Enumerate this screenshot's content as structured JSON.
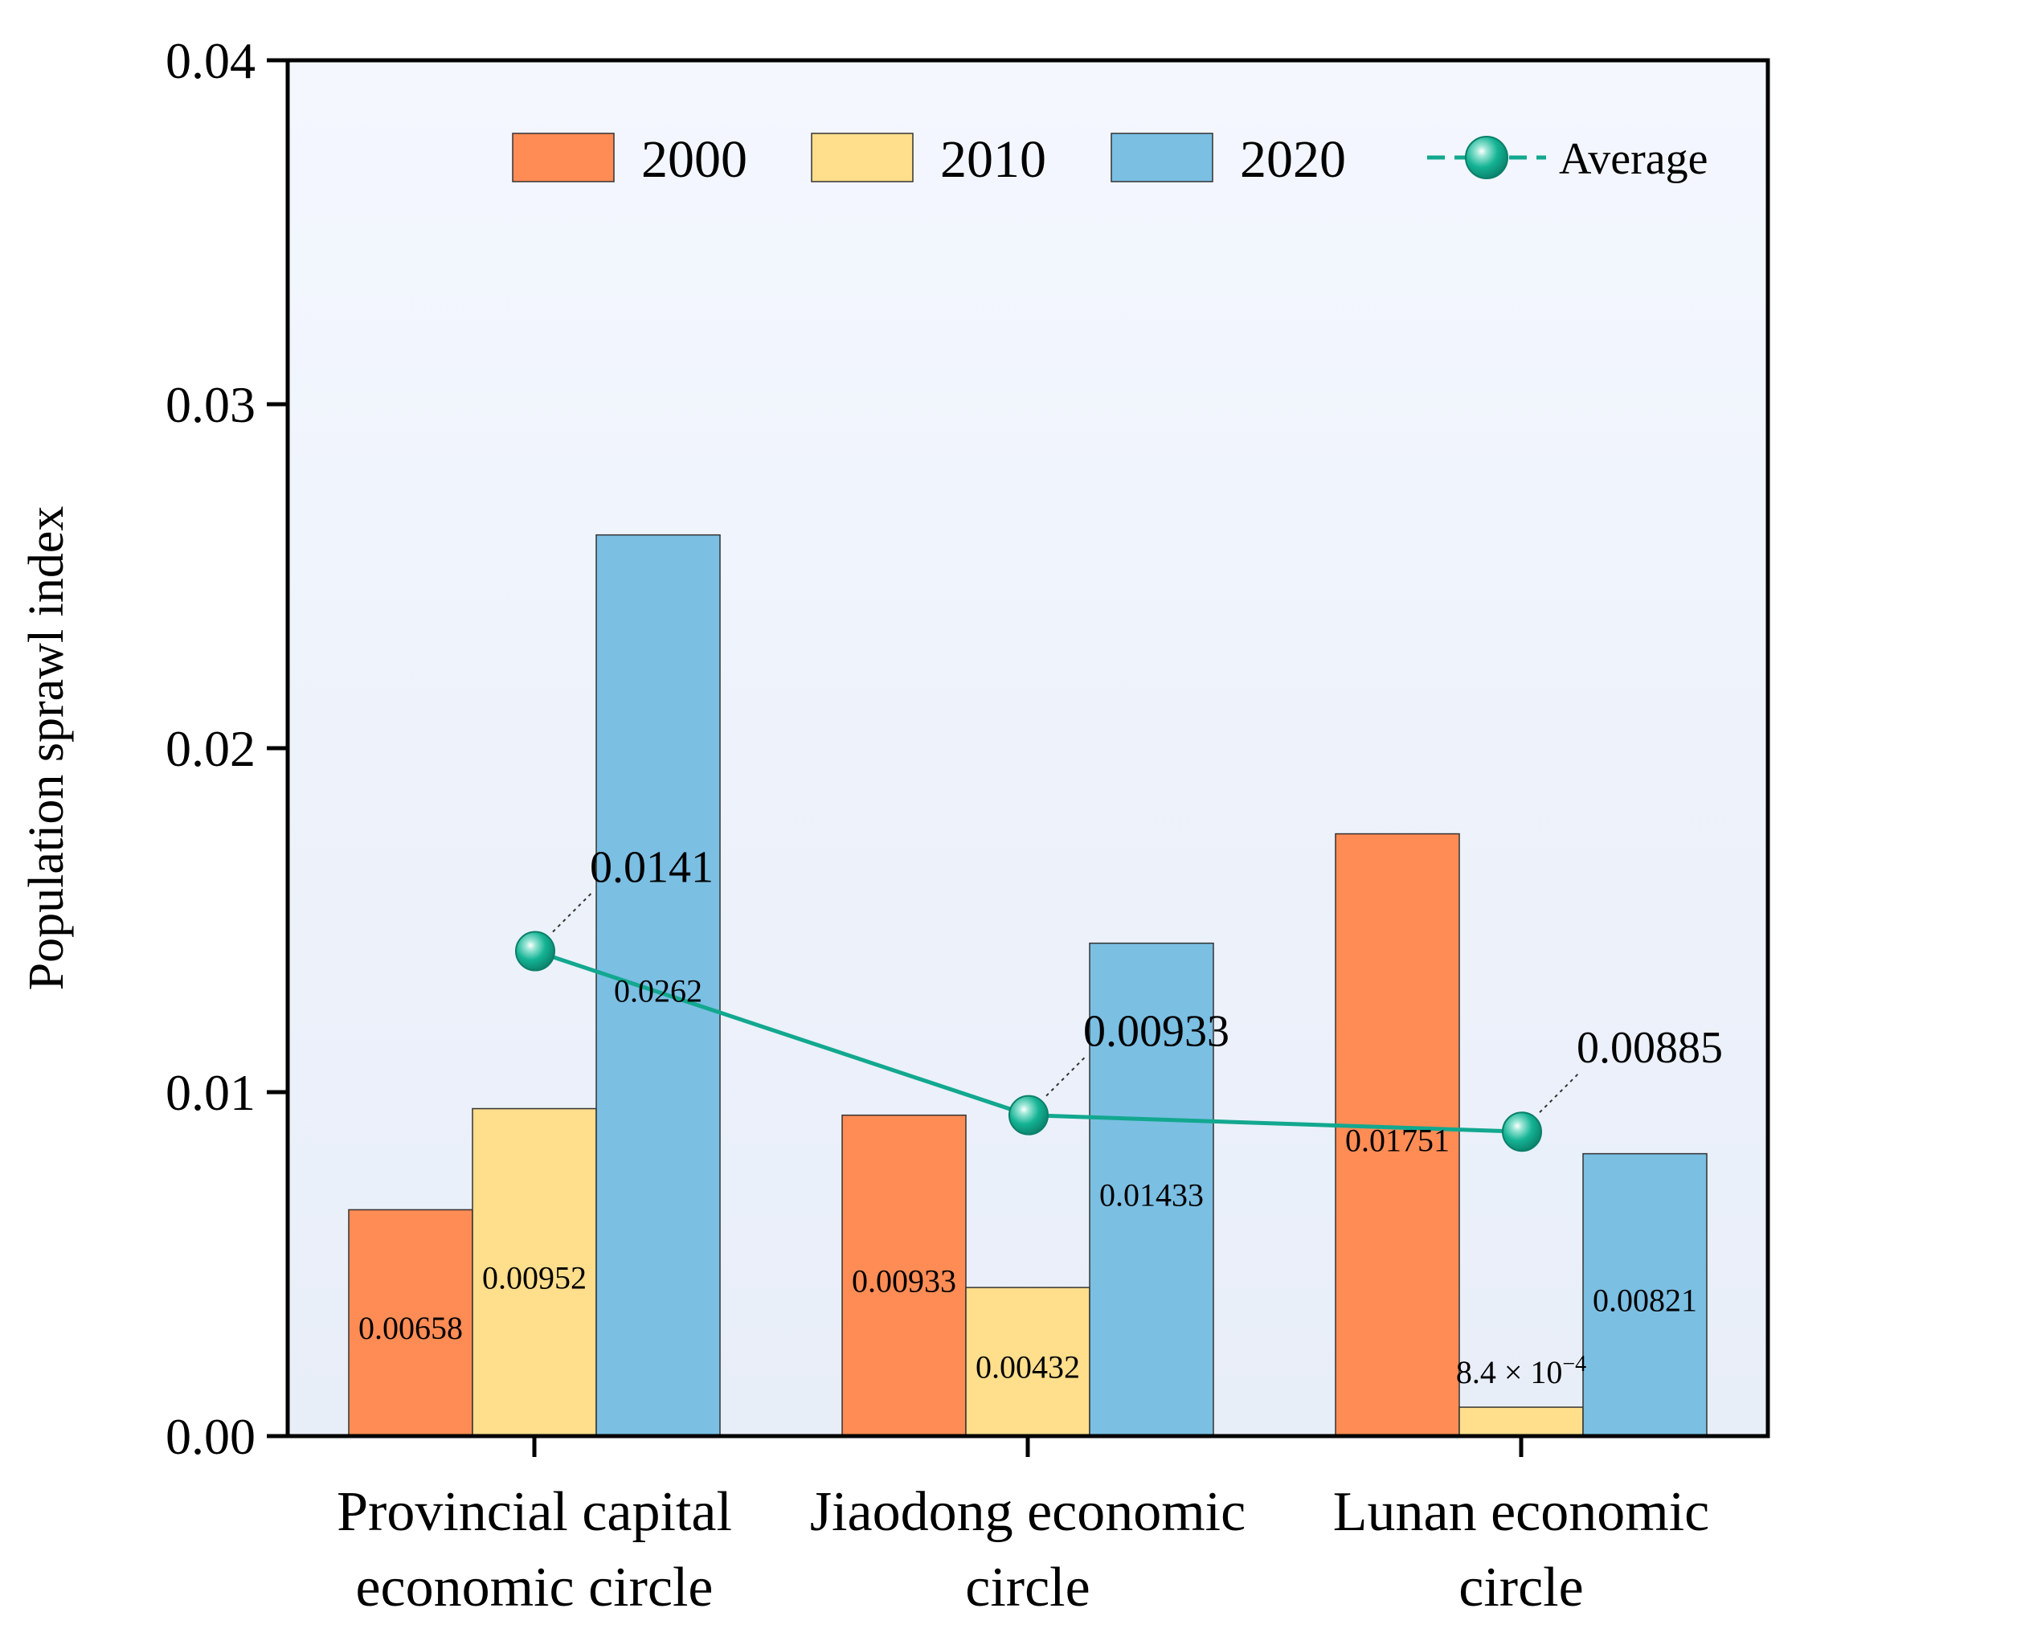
{
  "chart_data": {
    "type": "bar",
    "ylabel": "Population sprawl index",
    "xlabel": "",
    "ylim": [
      0,
      0.04
    ],
    "yticks": [
      "0.00",
      "0.01",
      "0.02",
      "0.03",
      "0.04"
    ],
    "yticks_values": [
      0,
      0.01,
      0.02,
      0.03,
      0.04
    ],
    "categories": [
      [
        "Provincial capital",
        "economic circle"
      ],
      [
        "Jiaodong economic",
        "circle"
      ],
      [
        "Lunan economic",
        "circle"
      ]
    ],
    "series": [
      {
        "name": "2000",
        "color": "#FF8C55",
        "values": [
          0.00658,
          0.00933,
          0.01751
        ],
        "labels": [
          "0.00658",
          "0.00933",
          "0.01751"
        ]
      },
      {
        "name": "2010",
        "color": "#FFDE8C",
        "values": [
          0.00952,
          0.00432,
          0.00084
        ],
        "labels": [
          "0.00952",
          "0.00432",
          "8.4 × 10"
        ],
        "label_sup": [
          "",
          "",
          "−4"
        ]
      },
      {
        "name": "2020",
        "color": "#7BBFE3",
        "values": [
          0.0262,
          0.01433,
          0.00821
        ],
        "labels": [
          "0.0262",
          "0.01433",
          "0.00821"
        ]
      }
    ],
    "line": {
      "name": "Average",
      "color": "#12A88F",
      "values": [
        0.0141,
        0.00933,
        0.00885
      ],
      "labels": [
        "0.0141",
        "0.00933",
        "0.00885"
      ]
    },
    "legend": {
      "position": "top",
      "entries": [
        "2000",
        "2010",
        "2020",
        "Average"
      ]
    },
    "grid": false
  }
}
